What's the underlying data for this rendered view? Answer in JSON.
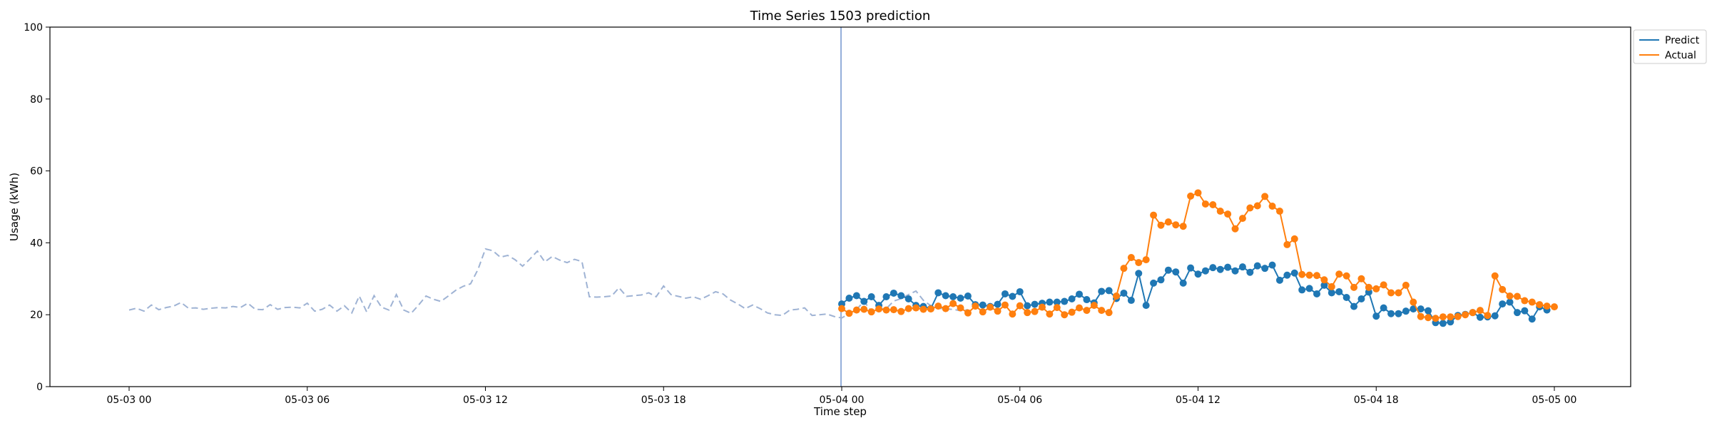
{
  "chart_data": {
    "type": "line",
    "title": "Time Series 1503 prediction",
    "xlabel": "Time step",
    "ylabel": "Usage (kWh)",
    "ylim": [
      0,
      100
    ],
    "yticks": [
      0,
      20,
      40,
      60,
      80,
      100
    ],
    "x_unit": "hour",
    "xlim": [
      "05-03 00",
      "05-05 00"
    ],
    "xticks": [
      "05-03 00",
      "05-03 06",
      "05-03 12",
      "05-03 18",
      "05-04 00",
      "05-04 06",
      "05-04 12",
      "05-04 18",
      "05-05 00"
    ],
    "grid": false,
    "legend_position": "top-right, outside plot",
    "marker_line": {
      "x": "05-04 00"
    },
    "history": {
      "x_start": "05-03 00",
      "x_step_hours": 0.25,
      "style": "dashed",
      "color": "#9fb3d4",
      "values": [
        21.3,
        21.8,
        21.0,
        22.7,
        21.4,
        22.0,
        22.4,
        23.4,
        21.8,
        21.9,
        21.5,
        21.8,
        22.0,
        21.9,
        22.3,
        22.0,
        23.2,
        21.5,
        21.4,
        22.8,
        21.5,
        22.0,
        22.1,
        21.9,
        23.2,
        21.0,
        21.5,
        22.7,
        21.0,
        22.5,
        20.5,
        25.2,
        20.8,
        25.3,
        22.1,
        21.3,
        25.6,
        21.3,
        20.4,
        22.7,
        25.2,
        24.3,
        23.7,
        25.2,
        26.8,
        27.9,
        28.6,
        32.6,
        38.3,
        37.8,
        36.0,
        36.5,
        35.3,
        33.5,
        35.5,
        37.7,
        34.7,
        36.2,
        35.2,
        34.5,
        35.4,
        34.8,
        25.0,
        24.9,
        25.0,
        25.2,
        27.5,
        25.1,
        25.3,
        25.5,
        26.1,
        25.0,
        28.0,
        25.6,
        25.1,
        24.6,
        25.0,
        24.3,
        25.3,
        26.4,
        25.8,
        24.1,
        23.0,
        21.7,
        22.7,
        21.7,
        20.5,
        20.0,
        19.8,
        21.3,
        21.5,
        21.9,
        19.8,
        20.0,
        20.2,
        19.5,
        19.1,
        20.3,
        21.5,
        23.7,
        21.0,
        21.6,
        21.7,
        23.8,
        24.5,
        25.6,
        26.6,
        24.0,
        22.5,
        21.8,
        21.6,
        21.5,
        21.1,
        21.4
      ]
    },
    "series": [
      {
        "name": "Predict",
        "color": "#1f77b4",
        "x_start": "05-04 00",
        "x_step_hours": 0.25,
        "values": [
          23.0,
          24.6,
          25.3,
          23.7,
          25.0,
          22.6,
          25.0,
          26.0,
          25.3,
          24.4,
          22.6,
          22.3,
          21.7,
          26.1,
          25.3,
          25.0,
          24.6,
          25.2,
          22.8,
          22.7,
          22.3,
          22.9,
          25.8,
          25.1,
          26.4,
          22.5,
          22.9,
          23.2,
          23.5,
          23.5,
          23.7,
          24.4,
          25.7,
          24.2,
          23.3,
          26.5,
          26.7,
          24.5,
          26.0,
          24.0,
          31.5,
          22.6,
          28.8,
          29.7,
          32.4,
          31.9,
          28.8,
          33.0,
          31.3,
          32.2,
          33.1,
          32.6,
          33.2,
          32.2,
          33.3,
          31.8,
          33.6,
          32.9,
          33.8,
          29.6,
          31.0,
          31.6,
          26.9,
          27.3,
          25.8,
          28.2,
          26.1,
          26.4,
          24.8,
          22.3,
          24.4,
          26.3,
          19.6,
          21.9,
          20.3,
          20.3,
          21.0,
          21.6,
          21.6,
          21.1,
          17.8,
          17.6,
          18.0,
          19.8,
          20.1,
          20.6,
          19.3,
          19.4,
          19.7,
          23.0,
          23.5,
          20.6,
          21.1,
          18.8,
          22.2,
          21.3
        ]
      },
      {
        "name": "Actual",
        "color": "#ff7f0e",
        "x_start": "05-04 00",
        "x_step_hours": 0.25,
        "values": [
          21.7,
          20.4,
          21.3,
          21.5,
          20.8,
          21.6,
          21.3,
          21.4,
          20.9,
          21.7,
          21.9,
          21.5,
          21.6,
          22.4,
          21.7,
          23.1,
          21.9,
          20.5,
          22.4,
          20.8,
          22.1,
          21.0,
          22.7,
          20.2,
          22.5,
          20.6,
          20.9,
          22.1,
          20.2,
          22.0,
          20.0,
          20.7,
          21.9,
          21.2,
          22.6,
          21.2,
          20.6,
          25.2,
          32.9,
          35.9,
          34.5,
          35.3,
          47.7,
          44.9,
          45.8,
          45.0,
          44.6,
          53.0,
          53.9,
          50.8,
          50.6,
          48.8,
          48.0,
          43.9,
          46.8,
          49.7,
          50.3,
          52.9,
          50.2,
          48.8,
          39.5,
          41.1,
          31.2,
          31.0,
          30.9,
          29.7,
          27.8,
          31.3,
          30.8,
          27.6,
          30.0,
          27.6,
          27.2,
          28.3,
          26.1,
          26.1,
          28.2,
          23.5,
          19.5,
          19.2,
          19.0,
          19.4,
          19.4,
          19.5,
          20.0,
          20.6,
          21.2,
          19.8,
          30.8,
          27.0,
          25.2,
          25.1,
          23.9,
          23.5,
          22.8,
          22.4,
          22.2
        ]
      }
    ]
  }
}
